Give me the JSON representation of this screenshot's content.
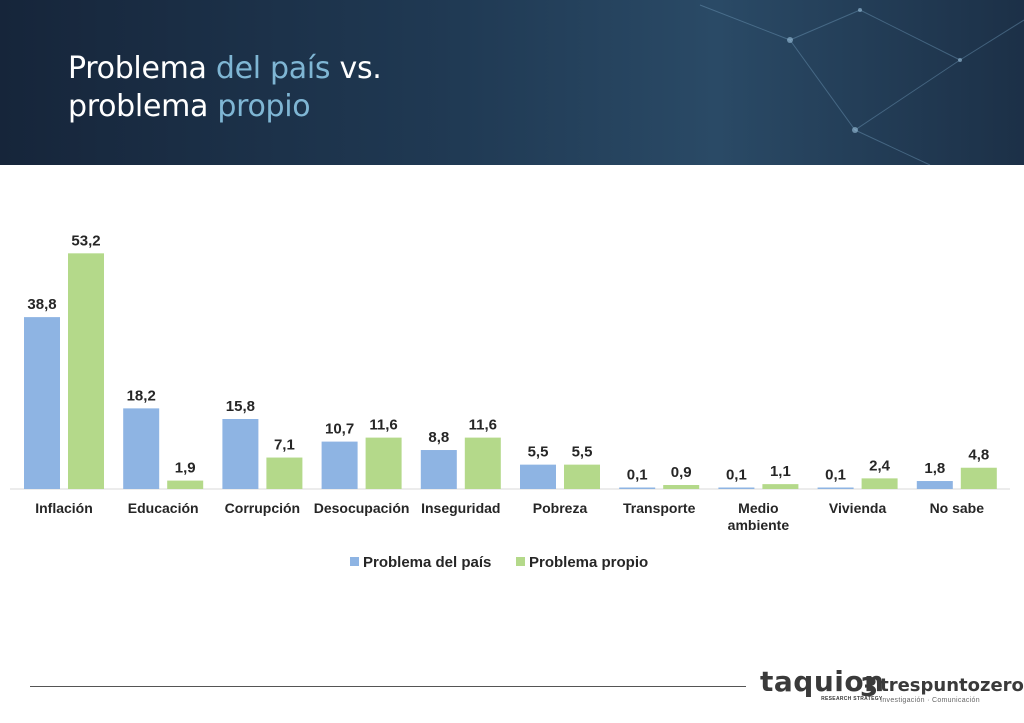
{
  "slide": {
    "title_line1_a": "Problema ",
    "title_line1_b": "del país",
    "title_line1_c": " vs.",
    "title_line2_a": "problema ",
    "title_line2_b": "propio"
  },
  "footer": {
    "taquion": "taquion",
    "taquion_tag": "RESEARCH STRATEGY",
    "tpz_number": "3",
    "tpz_name": "trespuntozero",
    "tpz_tagline": "Investigación · Comunicación"
  },
  "chart_data": {
    "type": "bar",
    "title": "Problema del país vs. problema propio",
    "categories": [
      "Inflación",
      "Educación",
      "Corrupción",
      "Desocupación",
      "Inseguridad",
      "Pobreza",
      "Transporte",
      "Medio ambiente",
      "Vivienda",
      "No sabe"
    ],
    "category_lines": [
      [
        "Inflación"
      ],
      [
        "Educación"
      ],
      [
        "Corrupción"
      ],
      [
        "Desocupación"
      ],
      [
        "Inseguridad"
      ],
      [
        "Pobreza"
      ],
      [
        "Transporte"
      ],
      [
        "Medio",
        "ambiente"
      ],
      [
        "Vivienda"
      ],
      [
        "No sabe"
      ]
    ],
    "series": [
      {
        "name": "Problema del país",
        "color": "#8eb4e3",
        "values": [
          38.8,
          18.2,
          15.8,
          10.7,
          8.8,
          5.5,
          0.1,
          0.1,
          0.1,
          1.8
        ],
        "labels": [
          "38,8",
          "18,2",
          "15,8",
          "10,7",
          "8,8",
          "5,5",
          "0,1",
          "0,1",
          "0,1",
          "1,8"
        ]
      },
      {
        "name": "Problema propio",
        "color": "#b4d98a",
        "values": [
          53.2,
          1.9,
          7.1,
          11.6,
          11.6,
          5.5,
          0.9,
          1.1,
          2.4,
          4.8
        ],
        "labels": [
          "53,2",
          "1,9",
          "7,1",
          "11,6",
          "11,6",
          "5,5",
          "0,9",
          "1,1",
          "2,4",
          "4,8"
        ]
      }
    ],
    "ylim": [
      0,
      60
    ],
    "grid": false,
    "legend_position": "bottom",
    "baseline_color": "#d9d9d9"
  }
}
